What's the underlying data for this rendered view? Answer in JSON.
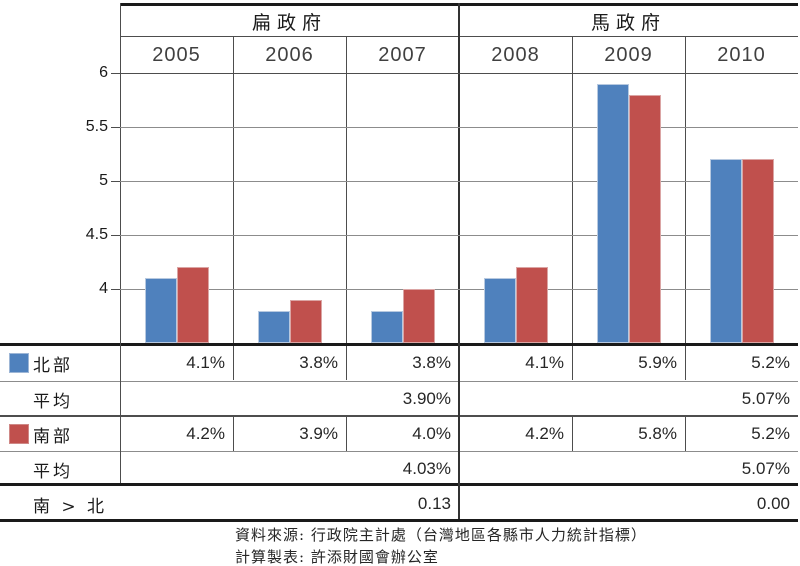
{
  "chart_data": {
    "type": "bar",
    "title": "",
    "groups": [
      {
        "label": "扁政府",
        "categories": [
          "2005",
          "2006",
          "2007"
        ]
      },
      {
        "label": "馬政府",
        "categories": [
          "2008",
          "2009",
          "2010"
        ]
      }
    ],
    "categories": [
      "2005",
      "2006",
      "2007",
      "2008",
      "2009",
      "2010"
    ],
    "series": [
      {
        "name": "北部",
        "color": "#4f81bd",
        "border_color": "#b7c9e0",
        "values": [
          4.1,
          3.8,
          3.8,
          4.1,
          5.9,
          5.2
        ]
      },
      {
        "name": "南部",
        "color": "#c0504d",
        "border_color": "#dba5a4",
        "values": [
          4.2,
          3.9,
          4.0,
          4.2,
          5.8,
          5.2
        ]
      }
    ],
    "ylim": [
      3.5,
      6
    ],
    "ytick_values": [
      6,
      5.5,
      5,
      4.5,
      4
    ],
    "ytick_labels": [
      "6",
      "5.5",
      "5",
      "4.5",
      "4"
    ],
    "grid": true,
    "legend_position": "table-rows-left"
  },
  "table": {
    "rows": [
      {
        "type": "series",
        "label": "北部",
        "swatch_color": "#4f81bd",
        "swatch_border": "#9db6d6",
        "cells": [
          "4.1%",
          "3.8%",
          "3.8%",
          "4.1%",
          "5.9%",
          "5.2%"
        ]
      },
      {
        "type": "average",
        "label": "平均",
        "merged": [
          "3.90%",
          "5.07%"
        ]
      },
      {
        "type": "series",
        "label": "南部",
        "swatch_color": "#c0504d",
        "swatch_border": "#cf8886",
        "cells": [
          "4.2%",
          "3.9%",
          "4.0%",
          "4.2%",
          "5.8%",
          "5.2%"
        ]
      },
      {
        "type": "average",
        "label": "平均",
        "merged": [
          "4.03%",
          "5.07%"
        ]
      },
      {
        "type": "diff",
        "label": "南 > 北",
        "merged": [
          "0.13",
          "0.00"
        ]
      }
    ]
  },
  "footer": {
    "source": "資料來源: 行政院主計處（台灣地區各縣市人力統計指標）",
    "credit": "計算製表: 許添財國會辦公室"
  },
  "colors": {
    "north": "#4f81bd",
    "south": "#c0504d",
    "gridline": "#8c8c8c",
    "border_thin": "#4d4d4d",
    "border_thick": "#1a1a1a",
    "text": "#262626"
  }
}
